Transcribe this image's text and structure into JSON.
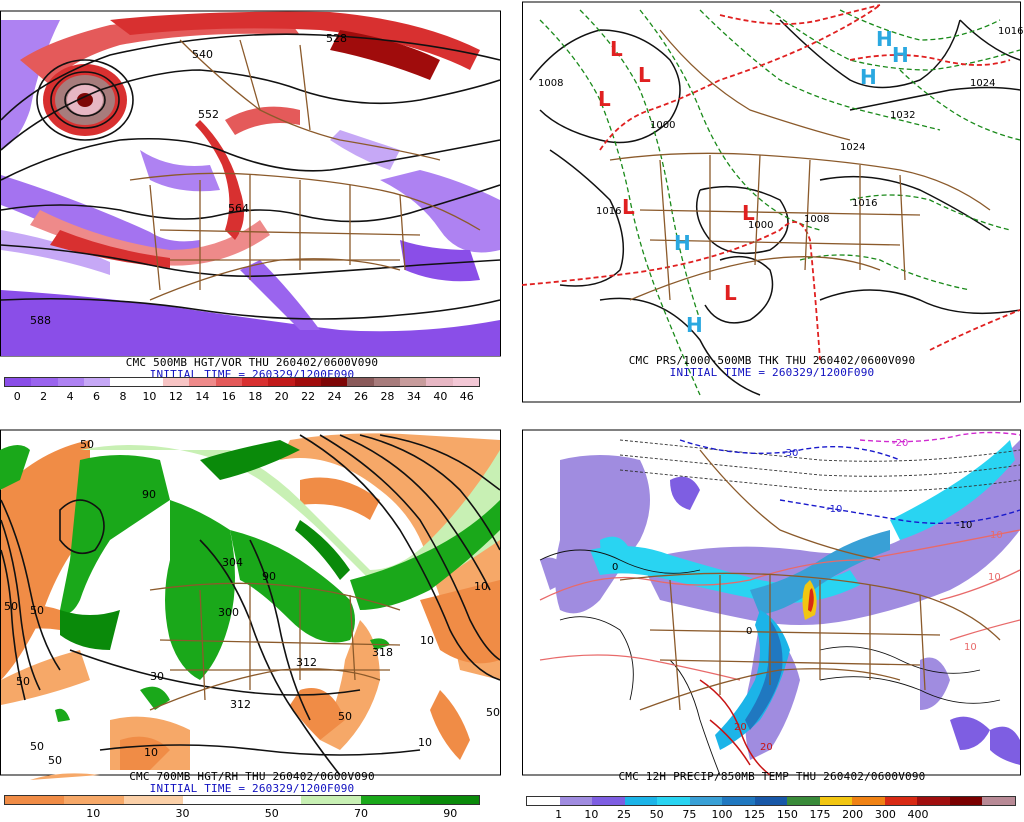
{
  "panels": [
    {
      "id": "p500",
      "title_line1": "CMC 500MB HGT/VOR THU 260402/0600V090",
      "title_line2": "INITIAL TIME = 260329/1200F090",
      "colorbar": {
        "colors": [
          "#8a4ee8",
          "#9a64ee",
          "#ae82f2",
          "#c6a8f6",
          "#ffffff",
          "#ffffff",
          "#f7c4c4",
          "#ee8a8a",
          "#e45a5a",
          "#d83030",
          "#c21a1a",
          "#a00c0c",
          "#7e0606",
          "#8a5a5a",
          "#a77c7c",
          "#c79c9c",
          "#e7b7c4",
          "#f3c8d6"
        ],
        "labels": [
          "0",
          "2",
          "4",
          "6",
          "8",
          "10",
          "12",
          "14",
          "16",
          "18",
          "20",
          "22",
          "24",
          "26",
          "28",
          "34",
          "40",
          "46"
        ]
      },
      "contour_labels": [
        "540",
        "528",
        "552",
        "564",
        "588"
      ]
    },
    {
      "id": "pthk",
      "title_line1": "CMC PRS/1000-500MB THK THU 260402/0600V090",
      "title_line2": "INITIAL TIME = 260329/1200F090",
      "lows": [
        "L",
        "L",
        "L",
        "L",
        "L",
        "L"
      ],
      "highs": [
        "H",
        "H",
        "H",
        "H",
        "H"
      ],
      "contour_labels": [
        "1008",
        "1016",
        "1016",
        "1024",
        "1032",
        "1024",
        "1000",
        "1000",
        "1008",
        "1016"
      ]
    },
    {
      "id": "p700",
      "title_line1": "CMC 700MB HGT/RH THU 260402/0600V090",
      "title_line2": "INITIAL TIME = 260329/1200F090",
      "colorbar": {
        "colors": [
          "#f08c46",
          "#f6a868",
          "#fbd0a8",
          "#ffffff",
          "#ffffff",
          "#c8f0b4",
          "#1aa81a",
          "#0a8a0a"
        ],
        "labels": [
          "10",
          "30",
          "50",
          "70",
          "90"
        ]
      },
      "contour_labels": [
        "50",
        "50",
        "50",
        "30",
        "50",
        "50",
        "304",
        "300",
        "312",
        "318",
        "312",
        "10",
        "10",
        "50",
        "50",
        "10",
        "50",
        "10",
        "90",
        "90"
      ]
    },
    {
      "id": "pprecip",
      "title_line1": "CMC 12H PRECIP/850MB TEMP THU 260402/0600V090",
      "colorbar": {
        "colors": [
          "#ffffff",
          "#a08ce0",
          "#7e5ee2",
          "#1cb4e8",
          "#29d4f2",
          "#39a0d6",
          "#2078c0",
          "#1858a8",
          "#3a8b3a",
          "#f2c612",
          "#f08214",
          "#d82a14",
          "#a00e0e",
          "#7a0000",
          "#b88a96"
        ],
        "labels": [
          "1",
          "10",
          "25",
          "50",
          "75",
          "100",
          "125",
          "150",
          "175",
          "200",
          "300",
          "400"
        ]
      },
      "contour_labels": [
        "-20",
        "-30",
        "-10",
        "-10",
        "0",
        "10",
        "0",
        "10",
        "20",
        "10",
        "20"
      ]
    }
  ]
}
